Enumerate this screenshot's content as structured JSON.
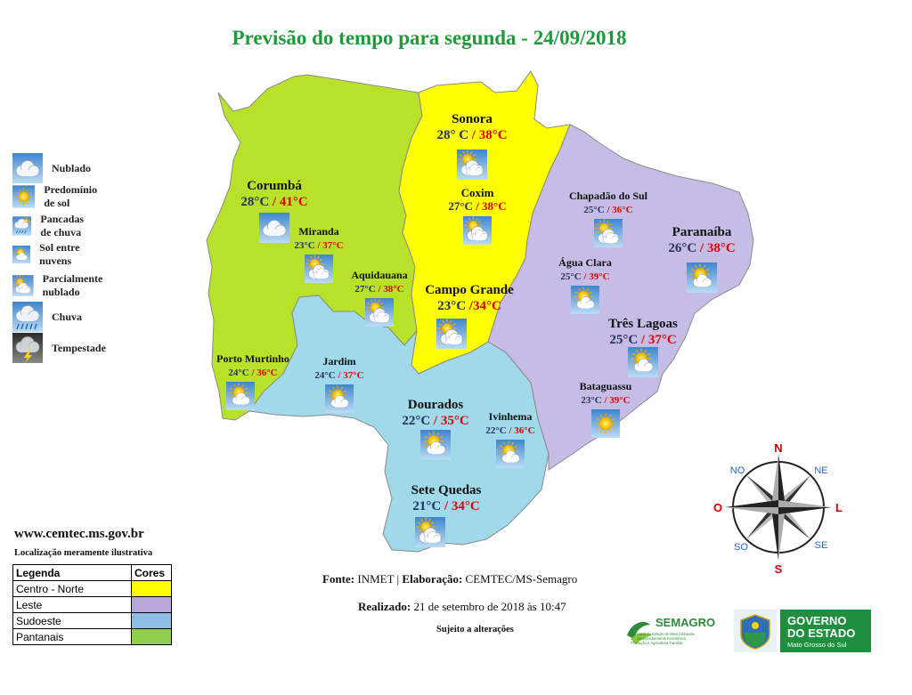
{
  "title": "Previsão do tempo para segunda - 24/09/2018",
  "colors": {
    "centro_norte": "#ffff00",
    "leste": "#c6bde6",
    "sudoeste": "#9fd9ea",
    "pantanais": "#b8e22a",
    "title": "#1c9a3c",
    "max_temp": "#e00000",
    "city_name": "#000000"
  },
  "legend_icons": [
    {
      "icon": "nublado-icon",
      "label": "Nublado"
    },
    {
      "icon": "sun-icon",
      "label": "Predomínio de sol"
    },
    {
      "icon": "pancadas-de-chuva-icon",
      "label": "Pancadas de chuva"
    },
    {
      "icon": "sol-entre-nuvens-icon",
      "label": "Sol entre nuvens"
    },
    {
      "icon": "parcialmente-nublado-icon",
      "label": "Parcialmente nublado"
    },
    {
      "icon": "chuva-icon",
      "label": "Chuva"
    },
    {
      "icon": "tempestade-icon",
      "label": "Tempestade"
    }
  ],
  "cities": [
    {
      "name": "Sonora",
      "min": "28° C",
      "max": "38°C",
      "sep": " / ",
      "icon": "parcialmente-nublado-icon",
      "size": "big"
    },
    {
      "name": "Corumbá",
      "min": "28°C",
      "max": "41°C",
      "sep": " / ",
      "icon": "nublado-icon",
      "size": "big"
    },
    {
      "name": "Coxim",
      "min": "27°C",
      "max": "38°C",
      "sep": " / ",
      "icon": "parcialmente-nublado-icon",
      "size": "mid"
    },
    {
      "name": "Chapadão do Sul",
      "min": "25°C",
      "max": "36°C",
      "sep": " / ",
      "icon": "parcialmente-nublado-icon",
      "size": "small"
    },
    {
      "name": "Paranaíba",
      "min": "26°C",
      "max": "38°C",
      "sep": " / ",
      "icon": "sol-entre-nuvens-icon",
      "size": "big"
    },
    {
      "name": "Miranda",
      "min": "23°C",
      "max": "37°C",
      "sep": " / ",
      "icon": "parcialmente-nublado-icon",
      "size": "small"
    },
    {
      "name": "Aquidauana",
      "min": "27°C",
      "max": "38°C",
      "sep": " / ",
      "icon": "parcialmente-nublado-icon",
      "size": "small"
    },
    {
      "name": "Água Clara",
      "min": "25°C",
      "max": "39°C",
      "sep": " / ",
      "icon": "sol-entre-nuvens-icon",
      "size": "small"
    },
    {
      "name": "Campo Grande",
      "min": "23°C",
      "max": "34°C",
      "sep": " /",
      "icon": "parcialmente-nublado-icon",
      "size": "big"
    },
    {
      "name": "Três Lagoas",
      "min": "25°C",
      "max": "37°C",
      "sep": " / ",
      "icon": "sol-entre-nuvens-icon",
      "size": "big"
    },
    {
      "name": "Porto Murtinho",
      "min": "24°C",
      "max": "36°C",
      "sep": " / ",
      "icon": "sol-entre-nuvens-icon",
      "size": "small"
    },
    {
      "name": "Jardim",
      "min": "24°C",
      "max": "37°C",
      "sep": " / ",
      "icon": "sol-entre-nuvens-icon",
      "size": "small"
    },
    {
      "name": "Bataguassu",
      "min": "23°C",
      "max": "39°C",
      "sep": " / ",
      "icon": "sun-icon",
      "size": "small"
    },
    {
      "name": "Dourados",
      "min": "22°C",
      "max": "35°C",
      "sep": " / ",
      "icon": "sol-entre-nuvens-icon",
      "size": "big"
    },
    {
      "name": "Ivinhema",
      "min": "22°C",
      "max": "36°C",
      "sep": " / ",
      "icon": "sol-entre-nuvens-icon",
      "size": "small"
    },
    {
      "name": "Sete Quedas",
      "min": "21°C",
      "max": "34°C",
      "sep": " / ",
      "icon": "parcialmente-nublado-icon",
      "size": "big"
    }
  ],
  "compass": {
    "n": "N",
    "ne": "NE",
    "l": "L",
    "se": "SE",
    "s": "S",
    "so": "SO",
    "o": "O",
    "no": "NO"
  },
  "website": "www.cemtec.ms.gov.br",
  "note": "Localização meramente ilustrativa",
  "legend_table": {
    "header_label": "Legenda",
    "header_colors": "Cores",
    "rows": [
      {
        "label": "Centro - Norte",
        "color": "#ffff00"
      },
      {
        "label": "Leste",
        "color": "#b9a6d8"
      },
      {
        "label": "Sudoeste",
        "color": "#8fbde4"
      },
      {
        "label": "Pantanais",
        "color": "#8fcf4d"
      }
    ]
  },
  "footer": {
    "fonte_label": "Fonte:",
    "fonte_value": "INMET",
    "elaboracao_label": "Elaboração:",
    "elaboracao_value": "CEMTEC/MS-Semagro",
    "realizado_label": "Realizado:",
    "realizado_value": "21 de setembro de 2018 às 10:47",
    "sujeito": "Sujeito a alterações"
  },
  "logos": {
    "semagro_name": "SEMAGRO",
    "semagro_sub1": "Secretaria de Estado de Meio Ambiente,",
    "semagro_sub2": "Desenvolvimento Econômico,",
    "semagro_sub3": "Produção e Agricultura Familiar",
    "gov_line1": "GOVERNO",
    "gov_line2": "DO ESTADO",
    "gov_line3": "Mato Grosso do Sul"
  }
}
